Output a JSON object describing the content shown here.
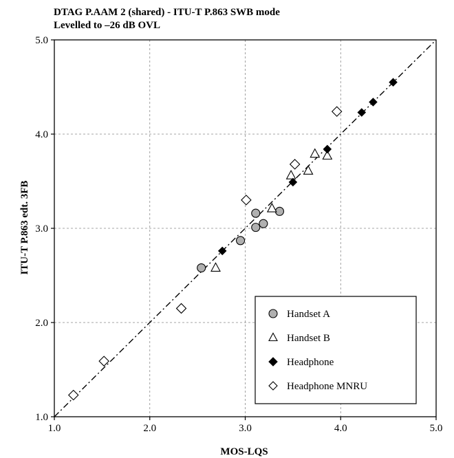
{
  "chart_data": {
    "type": "scatter",
    "title": "DTAG P.AAM 2 (shared) - ITU-T P.863 SWB mode",
    "subtitle": "Levelled to –26 dB OVL",
    "xlabel": "MOS-LQS",
    "ylabel": "ITU-T P.863 edt. 3FB",
    "xlim": [
      1.0,
      5.0
    ],
    "ylim": [
      1.0,
      5.0
    ],
    "xticks": [
      "1.0",
      "2.0",
      "3.0",
      "4.0",
      "5.0"
    ],
    "yticks": [
      "1.0",
      "2.0",
      "3.0",
      "4.0",
      "5.0"
    ],
    "grid": true,
    "reference_line": "diagonal dash-dot",
    "legend_position": "bottom-right",
    "series": [
      {
        "name": "Handset A",
        "marker": "circle",
        "fill": "#b0b0b0",
        "points": [
          [
            2.54,
            2.58
          ],
          [
            2.95,
            2.87
          ],
          [
            3.11,
            3.01
          ],
          [
            3.11,
            3.16
          ],
          [
            3.19,
            3.05
          ],
          [
            3.36,
            3.18
          ]
        ]
      },
      {
        "name": "Handset B",
        "marker": "triangle",
        "fill": "#ffffff",
        "points": [
          [
            2.69,
            2.58
          ],
          [
            3.28,
            3.21
          ],
          [
            3.48,
            3.56
          ],
          [
            3.66,
            3.61
          ],
          [
            3.73,
            3.79
          ],
          [
            3.86,
            3.77
          ]
        ]
      },
      {
        "name": "Headphone",
        "marker": "diamond",
        "fill": "#000000",
        "points": [
          [
            2.76,
            2.76
          ],
          [
            3.5,
            3.49
          ],
          [
            3.86,
            3.84
          ],
          [
            4.22,
            4.23
          ],
          [
            4.34,
            4.34
          ],
          [
            4.55,
            4.55
          ]
        ]
      },
      {
        "name": "Headphone MNRU",
        "marker": "diamond",
        "fill": "#ffffff",
        "points": [
          [
            1.2,
            1.23
          ],
          [
            1.52,
            1.59
          ],
          [
            2.33,
            2.15
          ],
          [
            3.01,
            3.3
          ],
          [
            3.52,
            3.68
          ],
          [
            3.96,
            4.24
          ]
        ]
      }
    ]
  }
}
